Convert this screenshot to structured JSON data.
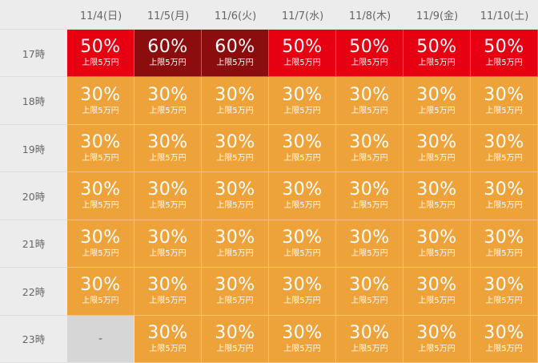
{
  "columns": [
    "11/4(日)",
    "11/5(月)",
    "11/6(火)",
    "11/7(水)",
    "11/8(木)",
    "11/9(金)",
    "11/10(土)"
  ],
  "colors": {
    "red": "#e60012",
    "dark": "#8b0d0d",
    "orange": "#eea23a",
    "empty": "#d6d6d6"
  },
  "rows": [
    {
      "label": "17時",
      "cells": [
        {
          "pct": "50%",
          "limit": "上限5万円",
          "tone": "red"
        },
        {
          "pct": "60%",
          "limit": "上限5万円",
          "tone": "dark"
        },
        {
          "pct": "60%",
          "limit": "上限5万円",
          "tone": "dark"
        },
        {
          "pct": "50%",
          "limit": "上限5万円",
          "tone": "red"
        },
        {
          "pct": "50%",
          "limit": "上限5万円",
          "tone": "red"
        },
        {
          "pct": "50%",
          "limit": "上限5万円",
          "tone": "red"
        },
        {
          "pct": "50%",
          "limit": "上限5万円",
          "tone": "red"
        }
      ]
    },
    {
      "label": "18時",
      "cells": [
        {
          "pct": "30%",
          "limit": "上限5万円",
          "tone": "orange"
        },
        {
          "pct": "30%",
          "limit": "上限5万円",
          "tone": "orange"
        },
        {
          "pct": "30%",
          "limit": "上限5万円",
          "tone": "orange"
        },
        {
          "pct": "30%",
          "limit": "上限5万円",
          "tone": "orange"
        },
        {
          "pct": "30%",
          "limit": "上限5万円",
          "tone": "orange"
        },
        {
          "pct": "30%",
          "limit": "上限5万円",
          "tone": "orange"
        },
        {
          "pct": "30%",
          "limit": "上限5万円",
          "tone": "orange"
        }
      ]
    },
    {
      "label": "19時",
      "cells": [
        {
          "pct": "30%",
          "limit": "上限5万円",
          "tone": "orange"
        },
        {
          "pct": "30%",
          "limit": "上限5万円",
          "tone": "orange"
        },
        {
          "pct": "30%",
          "limit": "上限5万円",
          "tone": "orange"
        },
        {
          "pct": "30%",
          "limit": "上限5万円",
          "tone": "orange"
        },
        {
          "pct": "30%",
          "limit": "上限5万円",
          "tone": "orange"
        },
        {
          "pct": "30%",
          "limit": "上限5万円",
          "tone": "orange"
        },
        {
          "pct": "30%",
          "limit": "上限5万円",
          "tone": "orange"
        }
      ]
    },
    {
      "label": "20時",
      "cells": [
        {
          "pct": "30%",
          "limit": "上限5万円",
          "tone": "orange"
        },
        {
          "pct": "30%",
          "limit": "上限5万円",
          "tone": "orange"
        },
        {
          "pct": "30%",
          "limit": "上限5万円",
          "tone": "orange"
        },
        {
          "pct": "30%",
          "limit": "上限5万円",
          "tone": "orange"
        },
        {
          "pct": "30%",
          "limit": "上限5万円",
          "tone": "orange"
        },
        {
          "pct": "30%",
          "limit": "上限5万円",
          "tone": "orange"
        },
        {
          "pct": "30%",
          "limit": "上限5万円",
          "tone": "orange"
        }
      ]
    },
    {
      "label": "21時",
      "cells": [
        {
          "pct": "30%",
          "limit": "上限5万円",
          "tone": "orange"
        },
        {
          "pct": "30%",
          "limit": "上限5万円",
          "tone": "orange"
        },
        {
          "pct": "30%",
          "limit": "上限5万円",
          "tone": "orange"
        },
        {
          "pct": "30%",
          "limit": "上限5万円",
          "tone": "orange"
        },
        {
          "pct": "30%",
          "limit": "上限5万円",
          "tone": "orange"
        },
        {
          "pct": "30%",
          "limit": "上限5万円",
          "tone": "orange"
        },
        {
          "pct": "30%",
          "limit": "上限5万円",
          "tone": "orange"
        }
      ]
    },
    {
      "label": "22時",
      "cells": [
        {
          "pct": "30%",
          "limit": "上限5万円",
          "tone": "orange"
        },
        {
          "pct": "30%",
          "limit": "上限5万円",
          "tone": "orange"
        },
        {
          "pct": "30%",
          "limit": "上限5万円",
          "tone": "orange"
        },
        {
          "pct": "30%",
          "limit": "上限5万円",
          "tone": "orange"
        },
        {
          "pct": "30%",
          "limit": "上限5万円",
          "tone": "orange"
        },
        {
          "pct": "30%",
          "limit": "上限5万円",
          "tone": "orange"
        },
        {
          "pct": "30%",
          "limit": "上限5万円",
          "tone": "orange"
        }
      ]
    },
    {
      "label": "23時",
      "cells": [
        {
          "text": "-",
          "tone": "empty"
        },
        {
          "pct": "30%",
          "limit": "上限5万円",
          "tone": "orange"
        },
        {
          "pct": "30%",
          "limit": "上限5万円",
          "tone": "orange"
        },
        {
          "pct": "30%",
          "limit": "上限5万円",
          "tone": "orange"
        },
        {
          "pct": "30%",
          "limit": "上限5万円",
          "tone": "orange"
        },
        {
          "pct": "30%",
          "limit": "上限5万円",
          "tone": "orange"
        },
        {
          "pct": "30%",
          "limit": "上限5万円",
          "tone": "orange"
        }
      ]
    }
  ]
}
